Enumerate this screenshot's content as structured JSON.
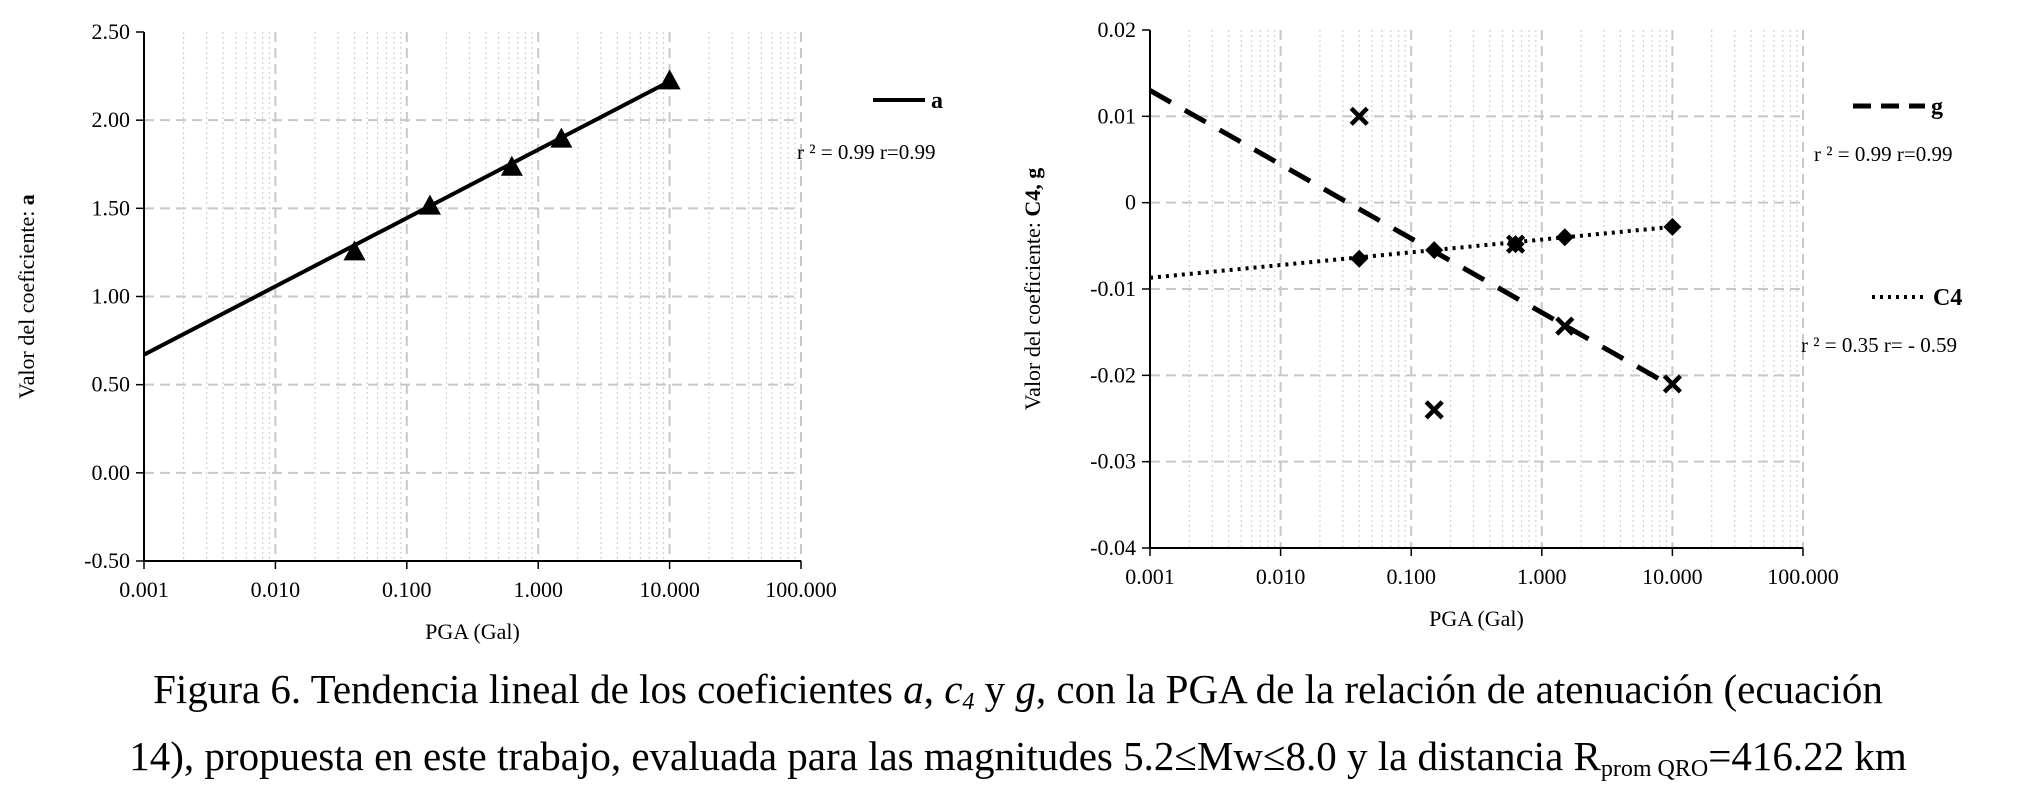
{
  "chart_data": [
    {
      "type": "line",
      "xscale": "log",
      "x_tick_labels": [
        "0.001",
        "0.010",
        "0.100",
        "1.000",
        "10.000",
        "100.000"
      ],
      "xlim": [
        0.001,
        100
      ],
      "xlabel": "PGA (Gal)",
      "ylabel_prefix": "Valor del coeficiente: ",
      "ylabel_bold": "a",
      "ylim": [
        -0.5,
        2.5
      ],
      "y_tick_labels": [
        "2.50",
        "2.00",
        "1.50",
        "1.00",
        "0.50",
        "0.00",
        "-0.50"
      ],
      "series": [
        {
          "name": "a",
          "fit_line": [
            [
              0.001,
              0.67
            ],
            [
              10,
              2.22
            ]
          ],
          "points": [
            [
              0.04,
              1.25
            ],
            [
              0.15,
              1.51
            ],
            [
              0.63,
              1.73
            ],
            [
              1.5,
              1.89
            ],
            [
              10,
              2.22
            ]
          ],
          "marker": "triangle",
          "stat": "r ² = 0.99   r=0.99"
        }
      ]
    },
    {
      "type": "line",
      "xscale": "log",
      "x_tick_labels": [
        "0.001",
        "0.010",
        "0.100",
        "1.000",
        "10.000",
        "100.000"
      ],
      "xlim": [
        0.001,
        100
      ],
      "xlabel": "PGA (Gal)",
      "ylabel_prefix": "Valor del coeficiente: ",
      "ylabel_bold": "C4,  g",
      "ylim": [
        -0.04,
        0.02
      ],
      "y_tick_labels": [
        "0.02",
        "0.01",
        "0",
        "-0.01",
        "-0.02",
        "-0.03",
        "-0.04"
      ],
      "series": [
        {
          "name": "g",
          "fit_line": [
            [
              0.001,
              0.013
            ],
            [
              10,
              -0.0213
            ]
          ],
          "points": [
            [
              0.04,
              0.01
            ],
            [
              0.15,
              -0.024
            ],
            [
              0.63,
              -0.0048
            ],
            [
              1.5,
              -0.0143
            ],
            [
              10,
              -0.021
            ]
          ],
          "marker": "x",
          "style": "dashed",
          "stat": "r ² = 0.99   r=0.99"
        },
        {
          "name": "C4",
          "fit_line": [
            [
              0.001,
              -0.0087
            ],
            [
              10,
              -0.0028
            ]
          ],
          "points": [
            [
              0.04,
              -0.0065
            ],
            [
              0.15,
              -0.0055
            ],
            [
              0.63,
              -0.0048
            ],
            [
              1.5,
              -0.004
            ],
            [
              10,
              -0.0028
            ]
          ],
          "marker": "diamond",
          "style": "dotted",
          "stat": "r ² = 0.35  r= - 0.59"
        }
      ]
    }
  ],
  "caption": {
    "l1_a": "Figura 6. Tendencia lineal de los coeficientes ",
    "l1_sym_a": "a",
    "l1_b": ", ",
    "l1_sym_c": "c",
    "l1_sym_c_sub": "4",
    "l1_c": " y ",
    "l1_sym_g": "g",
    "l1_d": ", con la PGA de la relación de atenuación (ecuación",
    "l2_a": "14), propuesta en este trabajo, evaluada para las magnitudes 5.2≤Mw≤8.0 y la distancia R",
    "l2_sub": "prom QRO",
    "l2_b": "=416.22 km"
  }
}
